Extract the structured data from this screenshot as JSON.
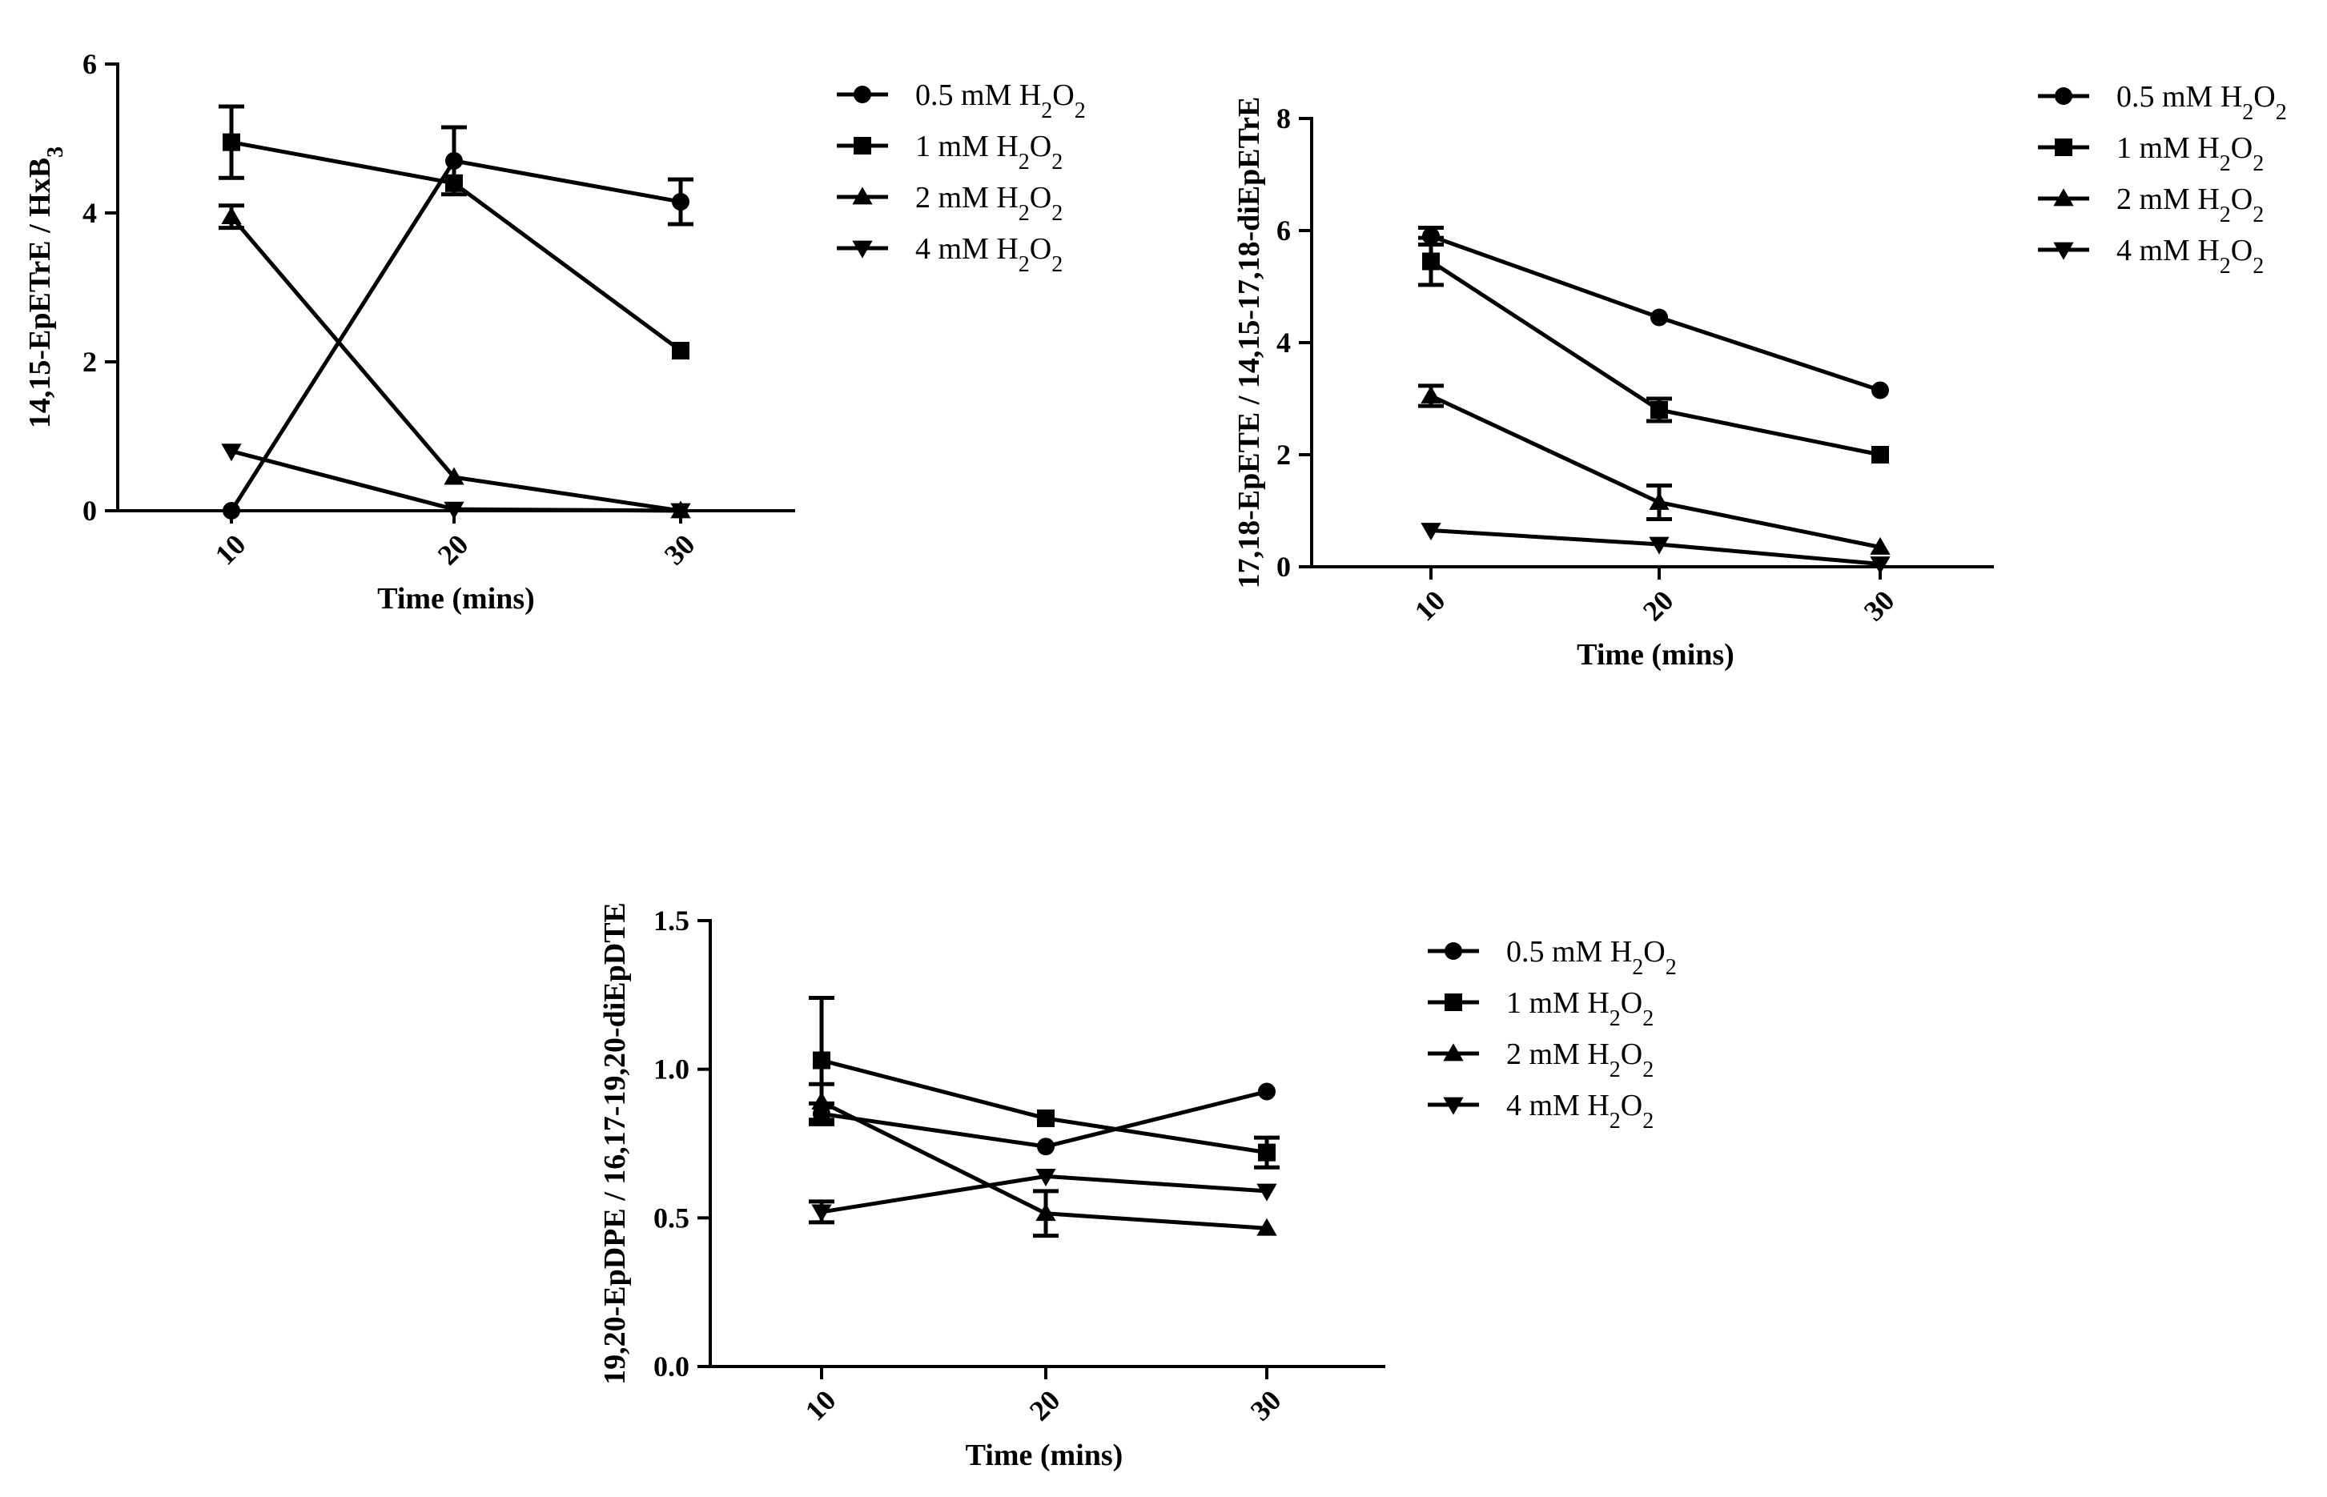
{
  "chart_data": [
    {
      "type": "line",
      "x": [
        10,
        20,
        30
      ],
      "xlabel": "Time (mins)",
      "ylabel": "14,15-EpETrE / HxB",
      "ylabel_sub": "3",
      "ylim": [
        0,
        6
      ],
      "yticks": [
        "0",
        "2",
        "4",
        "6"
      ],
      "series": [
        {
          "name": "0.5 mM H2O2",
          "marker": "circle",
          "values": [
            0.0,
            4.7,
            4.15
          ],
          "errors": [
            0.0,
            0.45,
            0.3
          ]
        },
        {
          "name": "1 mM H2O2",
          "marker": "square",
          "values": [
            4.95,
            4.4,
            2.15
          ],
          "errors": [
            0.48,
            0.0,
            0.0
          ]
        },
        {
          "name": "2 mM H2O2",
          "marker": "triangle-up",
          "values": [
            3.95,
            0.45,
            0.0
          ],
          "errors": [
            0.15,
            0.0,
            0.0
          ]
        },
        {
          "name": "4 mM H2O2",
          "marker": "triangle-down",
          "values": [
            0.8,
            0.02,
            0.0
          ],
          "errors": [
            0.0,
            0.0,
            0.0
          ]
        }
      ]
    },
    {
      "type": "line",
      "x": [
        10,
        20,
        30
      ],
      "xlabel": "Time (mins)",
      "ylabel": "17,18-EpETE / 14,15-17,18-diEpETrE",
      "ylabel_sub": "",
      "ylim": [
        0,
        8
      ],
      "yticks": [
        "0",
        "2",
        "4",
        "6",
        "8"
      ],
      "series": [
        {
          "name": "0.5 mM H2O2",
          "marker": "circle",
          "values": [
            5.9,
            4.45,
            3.15
          ],
          "errors": [
            0.15,
            0.0,
            0.0
          ]
        },
        {
          "name": "1 mM H2O2",
          "marker": "square",
          "values": [
            5.45,
            2.8,
            2.0
          ],
          "errors": [
            0.42,
            0.2,
            0.0
          ]
        },
        {
          "name": "2 mM H2O2",
          "marker": "triangle-up",
          "values": [
            3.05,
            1.15,
            0.35
          ],
          "errors": [
            0.18,
            0.3,
            0.0
          ]
        },
        {
          "name": "4 mM H2O2",
          "marker": "triangle-down",
          "values": [
            0.65,
            0.4,
            0.05
          ],
          "errors": [
            0.0,
            0.0,
            0.0
          ]
        }
      ]
    },
    {
      "type": "line",
      "x": [
        10,
        20,
        30
      ],
      "xlabel": "Time (mins)",
      "ylabel": "19,20-EpDPE / 16,17-19,20-diEpDTE",
      "ylabel_sub": "",
      "ylim": [
        0,
        1.5
      ],
      "yticks": [
        "0.0",
        "0.5",
        "1.0",
        "1.5"
      ],
      "series": [
        {
          "name": "0.5 mM H2O2",
          "marker": "circle",
          "values": [
            0.85,
            0.74,
            0.925
          ],
          "errors": [
            0.035,
            0.0,
            0.0
          ]
        },
        {
          "name": "1 mM H2O2",
          "marker": "square",
          "values": [
            1.03,
            0.835,
            0.72
          ],
          "errors": [
            0.21,
            0.0,
            0.05
          ]
        },
        {
          "name": "2 mM H2O2",
          "marker": "triangle-up",
          "values": [
            0.89,
            0.515,
            0.465
          ],
          "errors": [
            0.06,
            0.075,
            0.0
          ]
        },
        {
          "name": "4 mM H2O2",
          "marker": "triangle-down",
          "values": [
            0.52,
            0.64,
            0.59
          ],
          "errors": [
            0.035,
            0.0,
            0.0
          ]
        }
      ]
    }
  ],
  "legend": [
    {
      "conc": "0.5 mM H",
      "sub1": "2",
      "mid": "O",
      "sub2": "2"
    },
    {
      "conc": "1 mM H",
      "sub1": "2",
      "mid": "O",
      "sub2": "2"
    },
    {
      "conc": "2 mM H",
      "sub1": "2",
      "mid": "O",
      "sub2": "2"
    },
    {
      "conc": "4 mM H",
      "sub1": "2",
      "mid": "O",
      "sub2": "2"
    }
  ]
}
